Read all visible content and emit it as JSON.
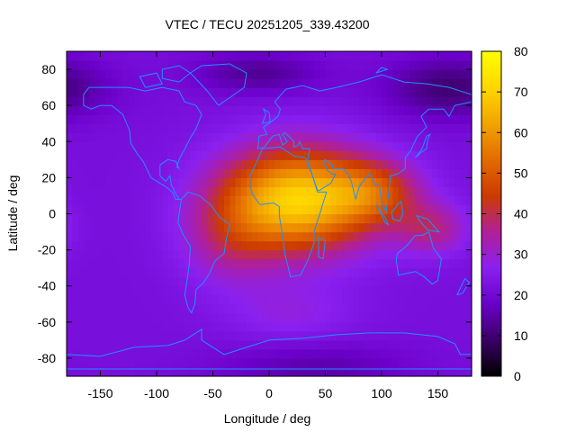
{
  "chart_data": {
    "type": "heatmap",
    "title": "VTEC / TECU 20251205_339.43200",
    "xlabel": "Longitude / deg",
    "ylabel": "Latitude / deg",
    "xlim": [
      -180,
      180
    ],
    "ylim": [
      -90,
      90
    ],
    "xticks": [
      -150,
      -100,
      -50,
      0,
      50,
      100,
      150
    ],
    "yticks": [
      -80,
      -60,
      -40,
      -20,
      0,
      20,
      40,
      60,
      80
    ],
    "colorbar": {
      "range": [
        0,
        80
      ],
      "ticks": [
        0,
        10,
        20,
        30,
        40,
        50,
        60,
        70,
        80
      ],
      "palette": [
        "#000000",
        "#3a0066",
        "#6a00c8",
        "#8a20f0",
        "#b02098",
        "#cc3a00",
        "#e36b00",
        "#f2a400",
        "#ffd700",
        "#ffff00"
      ]
    },
    "grid_step_deg": 5,
    "field_components": {
      "background": 22,
      "blobs": [
        {
          "lon": 25,
          "lat": 8,
          "slon": 48,
          "slat": 20,
          "amp": 48
        },
        {
          "lon": 95,
          "lat": 12,
          "slon": 28,
          "slat": 12,
          "amp": 18
        },
        {
          "lon": 145,
          "lat": -8,
          "slon": 22,
          "slat": 10,
          "amp": 14
        },
        {
          "lon": -35,
          "lat": -15,
          "slon": 30,
          "slat": 18,
          "amp": 10
        },
        {
          "lon": 20,
          "lat": -55,
          "slon": 40,
          "slat": 12,
          "amp": 6
        },
        {
          "lon": 160,
          "lat": 70,
          "slon": 40,
          "slat": 12,
          "amp": -12
        },
        {
          "lon": -10,
          "lat": 78,
          "slon": 40,
          "slat": 8,
          "amp": -9
        },
        {
          "lon": 40,
          "lat": -85,
          "slon": 60,
          "slat": 10,
          "amp": -7
        }
      ]
    },
    "coastline_color": "#1e90ff"
  }
}
